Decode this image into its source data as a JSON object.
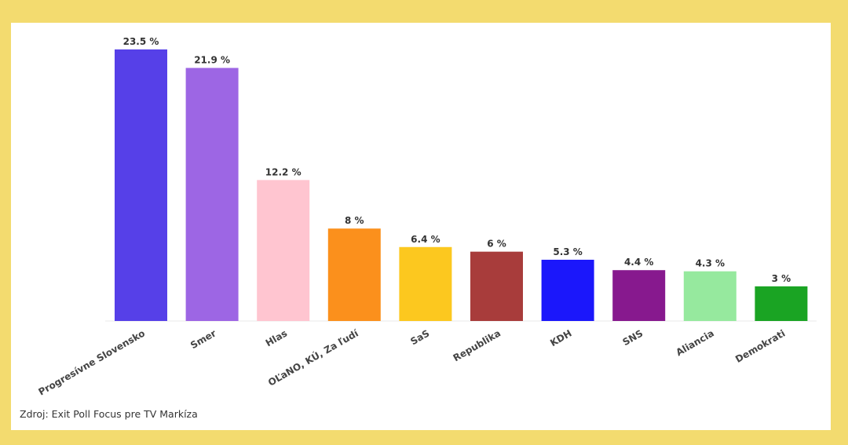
{
  "chart_data": {
    "type": "bar",
    "categories": [
      "Progresívne Slovensko",
      "Smer",
      "Hlas",
      "OĽaNO, KÚ, Za ľudí",
      "SaS",
      "Republika",
      "KDH",
      "SNS",
      "Aliancia",
      "Demokrati"
    ],
    "values": [
      23.5,
      21.9,
      12.2,
      8,
      6.4,
      6,
      5.3,
      4.4,
      4.3,
      3
    ],
    "value_labels": [
      "23.5 %",
      "21.9 %",
      "12.2 %",
      "8 %",
      "6.4 %",
      "6 %",
      "5.3 %",
      "4.4 %",
      "4.3 %",
      "3 %"
    ],
    "colors": [
      "#5640e8",
      "#9d66e4",
      "#ffc5d0",
      "#fb901c",
      "#fcc81f",
      "#a83c3b",
      "#1b17fb",
      "#87198e",
      "#96e99e",
      "#1aa423"
    ],
    "title": "",
    "xlabel": "",
    "ylabel": "",
    "ylim": [
      0,
      23.5
    ],
    "grid": false,
    "legend": "none"
  },
  "footer": {
    "source": "Zdroj: Exit Poll Focus pre TV Markíza"
  }
}
